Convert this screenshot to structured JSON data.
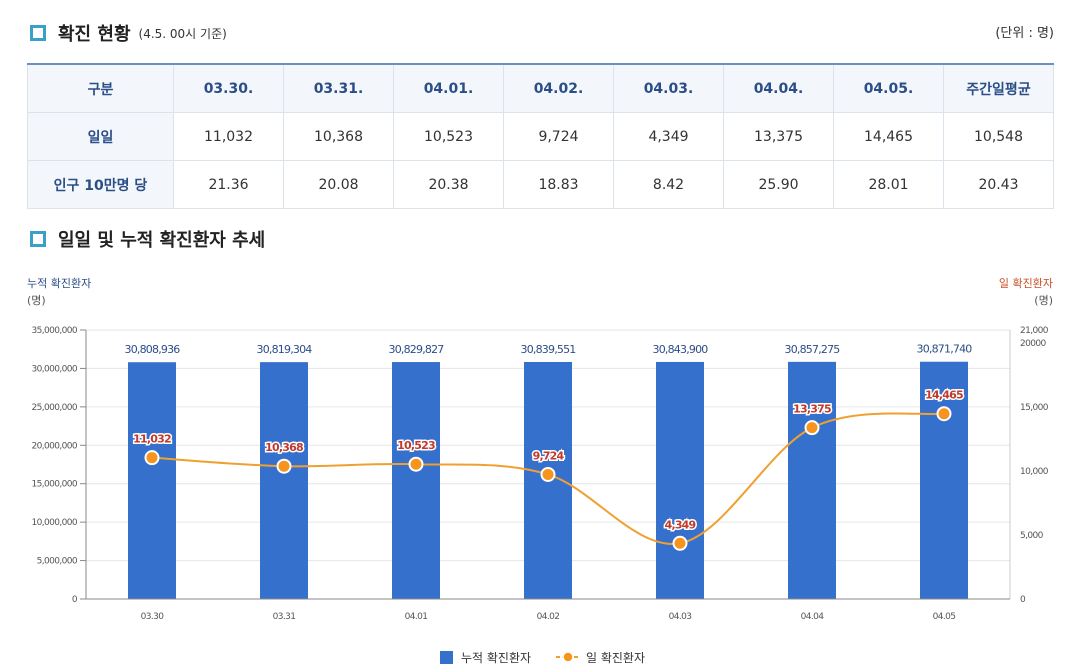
{
  "section1": {
    "title": "확진 현황",
    "subtitle": "(4.5. 00시 기준)",
    "unit": "(단위 : 명)"
  },
  "table": {
    "headers": [
      "구분",
      "03.30.",
      "03.31.",
      "04.01.",
      "04.02.",
      "04.03.",
      "04.04.",
      "04.05.",
      "주간일평균"
    ],
    "rows": [
      {
        "label": "일일",
        "values": [
          "11,032",
          "10,368",
          "10,523",
          "9,724",
          "4,349",
          "13,375",
          "14,465",
          "10,548"
        ]
      },
      {
        "label": "인구 10만명 당",
        "values": [
          "21.36",
          "20.08",
          "20.38",
          "18.83",
          "8.42",
          "25.90",
          "28.01",
          "20.43"
        ]
      }
    ]
  },
  "section2": {
    "title": "일일 및 누적 확진환자 추세"
  },
  "colors": {
    "bar": "#3570cc",
    "line": "#f0a030",
    "point": "#f7941d",
    "left_axis": "#2b4e87",
    "right_axis": "#c8502a"
  },
  "chart_data": {
    "type": "bar",
    "categories": [
      "03.30",
      "03.31",
      "04.01",
      "04.02",
      "04.03",
      "04.04",
      "04.05"
    ],
    "left_axis": {
      "label": "누적 확진환자",
      "unit": "(명)",
      "min": 0,
      "max": 35000000,
      "ticks": [
        0,
        5000000,
        10000000,
        15000000,
        20000000,
        25000000,
        30000000,
        35000000
      ],
      "tick_labels": [
        "0",
        "5,000,000",
        "10,000,000",
        "15,000,000",
        "20,000,000",
        "25,000,000",
        "30,000,000",
        "35,000,000"
      ]
    },
    "right_axis": {
      "label": "일 확진환자",
      "unit": "(명)",
      "min": 0,
      "max": 21000,
      "ticks": [
        0,
        5000,
        10000,
        15000,
        20000,
        21000
      ],
      "tick_labels": [
        "0",
        "5,000",
        "10,000",
        "15,000",
        "20000",
        "21,000"
      ]
    },
    "series": [
      {
        "name": "누적 확진환자",
        "type": "bar",
        "axis": "left",
        "values": [
          30808936,
          30819304,
          30829827,
          30839551,
          30843900,
          30857275,
          30871740
        ],
        "labels": [
          "30,808,936",
          "30,819,304",
          "30,829,827",
          "30,839,551",
          "30,843,900",
          "30,857,275",
          "30,871,740"
        ]
      },
      {
        "name": "일 확진환자",
        "type": "line",
        "axis": "right",
        "values": [
          11032,
          10368,
          10523,
          9724,
          4349,
          13375,
          14465
        ],
        "labels": [
          "11,032",
          "10,368",
          "10,523",
          "9,724",
          "4,349",
          "13,375",
          "14,465"
        ]
      }
    ],
    "legend": [
      "누적 확진환자",
      "일 확진환자"
    ]
  }
}
